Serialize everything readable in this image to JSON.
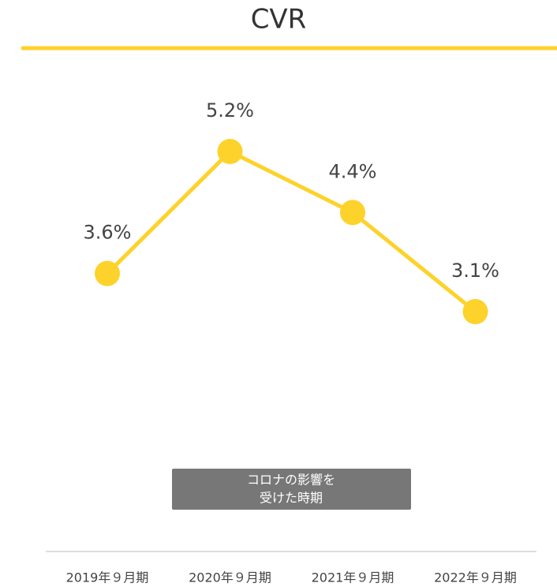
{
  "chart_data": {
    "type": "line",
    "title": "CVR",
    "categories": [
      "2019年９月期",
      "2020年９月期",
      "2021年９月期",
      "2022年９月期"
    ],
    "values": [
      3.6,
      5.2,
      4.4,
      3.1
    ],
    "value_labels": [
      "3.6%",
      "5.2%",
      "4.4%",
      "3.1%"
    ],
    "color": "#fdd22b",
    "annotation": [
      "コロナの影響を",
      "受けた時期"
    ]
  }
}
